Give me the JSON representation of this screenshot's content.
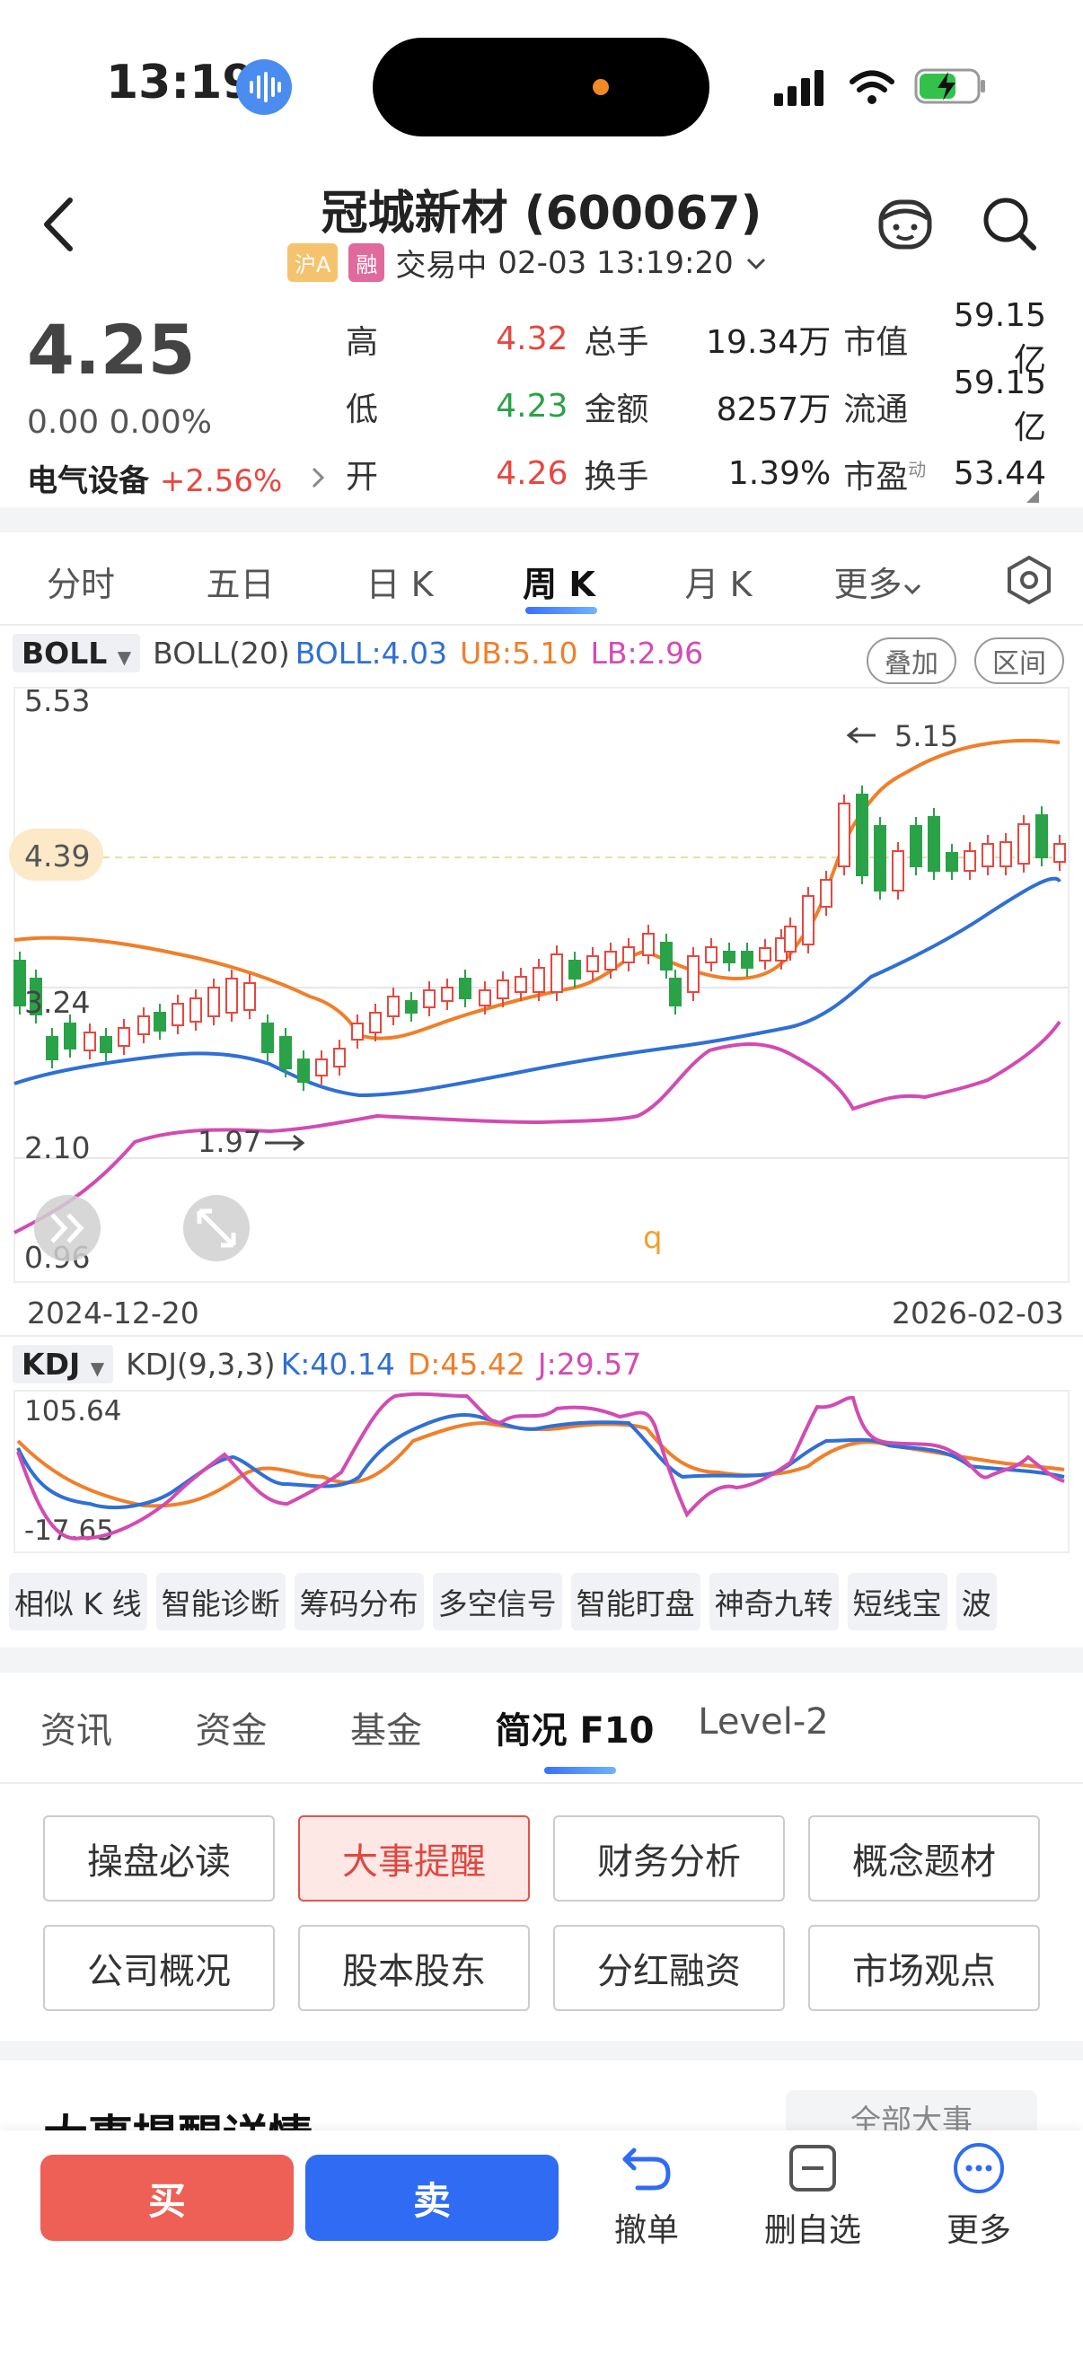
{
  "status": {
    "time": "13:19"
  },
  "header": {
    "title": "冠城新材 (600067)",
    "market_tag": "沪A",
    "margin_tag": "融",
    "trade_status": "交易中",
    "datetime": "02-03 13:19:20"
  },
  "quote": {
    "price": "4.25",
    "change": "0.00 0.00%",
    "sector": "电气设备",
    "sector_change": "+2.56%",
    "rows": [
      {
        "l1": "高",
        "v1": "4.32",
        "k2": "总手",
        "v2": "19.34万",
        "k3": "市值",
        "v3": "59.15亿"
      },
      {
        "l1": "低",
        "v1": "4.23",
        "k2": "金额",
        "v2": "8257万",
        "k3": "流通",
        "v3": "59.15亿"
      },
      {
        "l1": "开",
        "v1": "4.26",
        "k2": "换手",
        "v2": "1.39%",
        "k3": "市盈",
        "k3_sup": "动",
        "v3": "53.44"
      }
    ]
  },
  "chart_tabs": [
    "分时",
    "五日",
    "日 K",
    "周 K",
    "月 K",
    "更多"
  ],
  "boll": {
    "name": "BOLL",
    "params": "BOLL(20)",
    "mid": "BOLL:4.03",
    "ub": "UB:5.10",
    "lb": "LB:2.96",
    "btn_overlay": "叠加",
    "btn_range": "区间",
    "y_labels": [
      "5.53",
      "4.39",
      "3.24",
      "2.10",
      "0.96"
    ],
    "annot_high": "5.15",
    "annot_low": "1.97",
    "marker": "q",
    "date_start": "2024-12-20",
    "date_end": "2026-02-03"
  },
  "kdj": {
    "name": "KDJ",
    "params": "KDJ(9,3,3)",
    "k": "K:40.14",
    "d": "D:45.42",
    "j": "J:29.57",
    "y_top": "105.64",
    "y_bottom": "-17.65"
  },
  "tools": [
    "相似 K 线",
    "智能诊断",
    "筹码分布",
    "多空信号",
    "智能盯盘",
    "神奇九转",
    "短线宝",
    "波"
  ],
  "info_tabs": [
    "资讯",
    "资金",
    "基金",
    "简况 F10",
    "Level-2"
  ],
  "f10_buttons": [
    "操盘必读",
    "大事提醒",
    "财务分析",
    "概念题材",
    "公司概况",
    "股本股东",
    "分红融资",
    "市场观点"
  ],
  "section_partial": {
    "title": "大事提醒详情",
    "filter": "全部大事"
  },
  "bottom": {
    "buy": "买",
    "sell": "卖",
    "cancel": "撤单",
    "remove_watch": "删自选",
    "more": "更多"
  },
  "colors": {
    "up": "#e8473f",
    "down": "#2aa247",
    "boll_mid": "#2f6fd6",
    "boll_ub": "#f07f2a",
    "boll_lb": "#d24bb3",
    "accent": "#2f6cf3"
  }
}
